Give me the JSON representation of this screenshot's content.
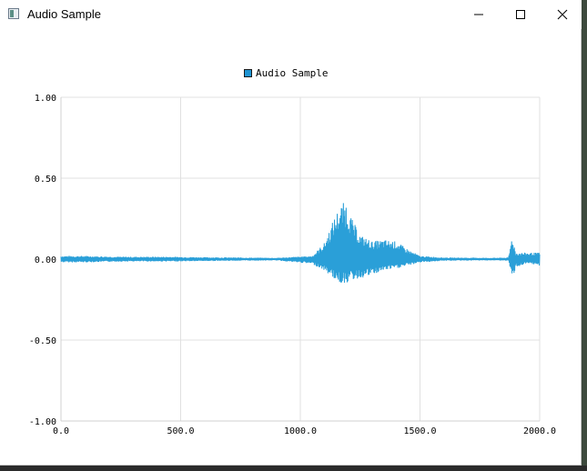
{
  "window": {
    "title": "Audio Sample"
  },
  "icons": {
    "app": "app-icon",
    "minimize": "minimize-icon",
    "maximize": "maximize-icon",
    "close": "close-icon"
  },
  "colors": {
    "series": "#2a9fd8",
    "grid": "#e0e0e0",
    "axis": "#d0d0d0"
  },
  "chart_data": {
    "type": "line",
    "title": "",
    "xlabel": "",
    "ylabel": "",
    "xlim": [
      0,
      2000
    ],
    "ylim": [
      -1.0,
      1.0
    ],
    "grid": true,
    "legend_position": "top-center",
    "x_ticks": [
      "0.0",
      "500.0",
      "1000.0",
      "1500.0",
      "2000.0"
    ],
    "y_ticks": [
      "1.00",
      "0.50",
      "0.00",
      "-0.50",
      "-1.00"
    ],
    "series": [
      {
        "name": "Audio Sample",
        "envelope": [
          {
            "x": 0,
            "max": 0.02,
            "min": -0.02
          },
          {
            "x": 100,
            "max": 0.02,
            "min": -0.02
          },
          {
            "x": 250,
            "max": 0.015,
            "min": -0.015
          },
          {
            "x": 450,
            "max": 0.015,
            "min": -0.015
          },
          {
            "x": 600,
            "max": 0.012,
            "min": -0.012
          },
          {
            "x": 900,
            "max": 0.008,
            "min": -0.008
          },
          {
            "x": 1050,
            "max": 0.02,
            "min": -0.03
          },
          {
            "x": 1100,
            "max": 0.1,
            "min": -0.07
          },
          {
            "x": 1140,
            "max": 0.25,
            "min": -0.12
          },
          {
            "x": 1165,
            "max": 0.33,
            "min": -0.15
          },
          {
            "x": 1190,
            "max": 0.36,
            "min": -0.15
          },
          {
            "x": 1215,
            "max": 0.25,
            "min": -0.13
          },
          {
            "x": 1250,
            "max": 0.15,
            "min": -0.12
          },
          {
            "x": 1300,
            "max": 0.11,
            "min": -0.1
          },
          {
            "x": 1350,
            "max": 0.12,
            "min": -0.07
          },
          {
            "x": 1400,
            "max": 0.11,
            "min": -0.06
          },
          {
            "x": 1450,
            "max": 0.06,
            "min": -0.04
          },
          {
            "x": 1500,
            "max": 0.02,
            "min": -0.02
          },
          {
            "x": 1600,
            "max": 0.01,
            "min": -0.01
          },
          {
            "x": 1800,
            "max": 0.008,
            "min": -0.008
          },
          {
            "x": 1870,
            "max": 0.01,
            "min": -0.01
          },
          {
            "x": 1885,
            "max": 0.15,
            "min": -0.13
          },
          {
            "x": 1900,
            "max": 0.04,
            "min": -0.05
          },
          {
            "x": 1950,
            "max": 0.04,
            "min": -0.03
          },
          {
            "x": 2000,
            "max": 0.04,
            "min": -0.04
          }
        ]
      }
    ]
  }
}
